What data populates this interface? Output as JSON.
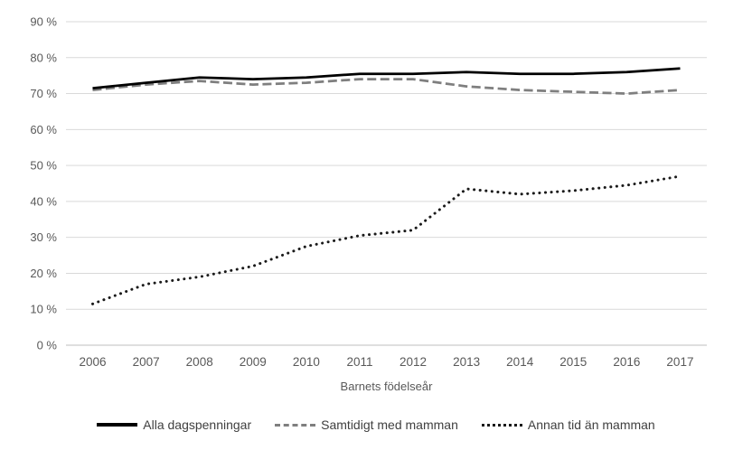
{
  "chart_data": {
    "type": "line",
    "title": "",
    "xlabel": "Barnets födelseår",
    "ylabel": "",
    "categories": [
      "2006",
      "2007",
      "2008",
      "2009",
      "2010",
      "2011",
      "2012",
      "2013",
      "2014",
      "2015",
      "2016",
      "2017"
    ],
    "y_tick_labels": [
      "0 %",
      "10 %",
      "20 %",
      "30 %",
      "40 %",
      "50 %",
      "60 %",
      "70 %",
      "80 %",
      "90 %"
    ],
    "ylim": [
      0,
      90
    ],
    "ytick_step": 10,
    "grid": true,
    "legend_position": "bottom",
    "series": [
      {
        "name": "Alla dagspenningar",
        "line_style": "solid",
        "color": "#000000",
        "values": [
          71.5,
          73,
          74.5,
          74,
          74.5,
          75.5,
          75.5,
          76,
          75.5,
          75.5,
          76,
          77
        ]
      },
      {
        "name": "Samtidigt med mamman",
        "line_style": "dashed",
        "color": "#7f7f7f",
        "values": [
          71,
          72.5,
          73.5,
          72.5,
          73,
          74,
          74,
          72,
          71,
          70.5,
          70,
          71
        ]
      },
      {
        "name": "Annan tid än mamman",
        "line_style": "dotted",
        "color": "#1a1a1a",
        "values": [
          11.5,
          17,
          19,
          22,
          27.5,
          30.5,
          32,
          43.5,
          42,
          43,
          44.5,
          47
        ]
      }
    ]
  },
  "styles": {
    "background": "#ffffff",
    "grid_color": "#d9d9d9",
    "baseline_color": "#bfbfbf",
    "tick_label_color": "#595959",
    "axis_title_color": "#595959",
    "legend_text_color": "#404040"
  }
}
